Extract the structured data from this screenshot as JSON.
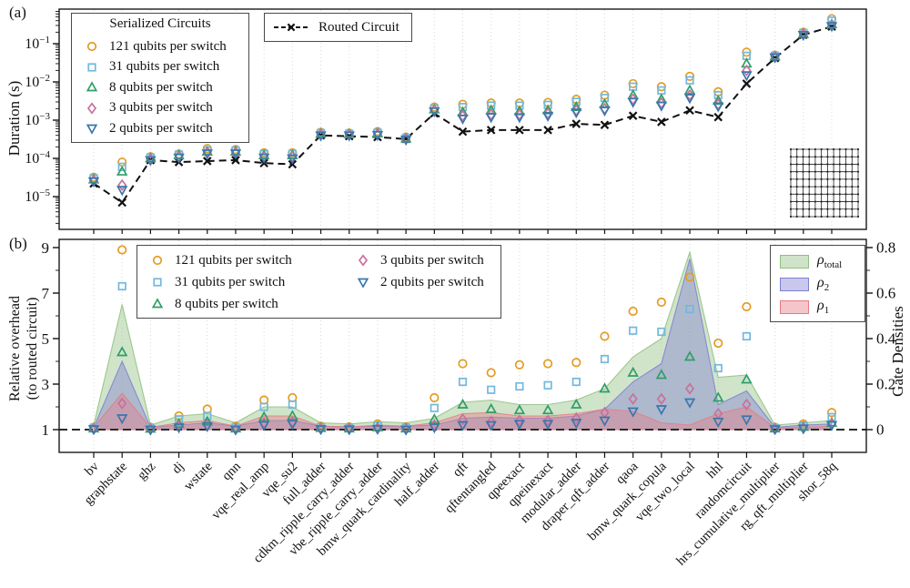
{
  "figure": {
    "panel_a_tag": "(a)",
    "panel_b_tag": "(b)"
  },
  "chart_data": {
    "type": [
      "scatter-log-y",
      "scatter-linear-with-area"
    ],
    "categories": [
      "bv",
      "graphstate",
      "ghz",
      "dj",
      "wstate",
      "qnn",
      "vqe_real_amp",
      "vqe_su2",
      "full_adder",
      "cdkm_ripple_carry_adder",
      "vbe_ripple_carry_adder",
      "bmw_quark_cardinality",
      "half_adder",
      "qft",
      "qftentangled",
      "qpeexact",
      "qpeinexact",
      "modular_adder",
      "draper_qft_adder",
      "qaoa",
      "bmw_quark_copula",
      "vqe_two_local",
      "hhl",
      "randomcircuit",
      "hrs_cumulative_multiplier",
      "rg_qft_multiplier",
      "shor_58q"
    ],
    "panel_a": {
      "ylabel": "Duration (s)",
      "ytick_exponents": [
        -1,
        -2,
        -3,
        -4,
        -5
      ],
      "ylim": [
        1.4e-06,
        0.8
      ],
      "legend_title": "Serialized Circuits",
      "series": [
        {
          "label": "121 qubits per switch",
          "marker": "circle",
          "color": "#E39D25",
          "values": [
            3.2e-05,
            8e-05,
            0.00011,
            0.00013,
            0.00018,
            0.00017,
            0.00014,
            0.00014,
            0.00048,
            0.00046,
            0.0005,
            0.00036,
            0.0022,
            0.0026,
            0.0028,
            0.0028,
            0.0029,
            0.0035,
            0.0045,
            0.009,
            0.0075,
            0.014,
            0.0055,
            0.06,
            0.05,
            0.2,
            0.45
          ]
        },
        {
          "label": "31 qubits per switch",
          "marker": "square",
          "color": "#72B8DE",
          "values": [
            3e-05,
            6e-05,
            0.000105,
            0.000125,
            0.00016,
            0.00016,
            0.00013,
            0.00013,
            0.00046,
            0.00044,
            0.00047,
            0.00034,
            0.002,
            0.0022,
            0.0024,
            0.0024,
            0.0025,
            0.003,
            0.0038,
            0.0075,
            0.006,
            0.011,
            0.0045,
            0.048,
            0.048,
            0.19,
            0.4
          ]
        },
        {
          "label": "8 qubits per switch",
          "marker": "triangle-up",
          "color": "#2F9E68",
          "values": [
            2.8e-05,
            4.5e-05,
            0.0001,
            0.00012,
            0.00015,
            0.00015,
            0.00012,
            0.00012,
            0.00044,
            0.00043,
            0.00045,
            0.00033,
            0.0019,
            0.0016,
            0.0018,
            0.0017,
            0.0018,
            0.0022,
            0.0026,
            0.0045,
            0.0035,
            0.006,
            0.0032,
            0.03,
            0.046,
            0.18,
            0.32
          ]
        },
        {
          "label": "3 qubits per switch",
          "marker": "diamond",
          "color": "#C9709B",
          "values": [
            2.6e-05,
            2e-05,
            9.5e-05,
            0.00011,
            0.00014,
            0.00014,
            0.00011,
            0.00011,
            0.00042,
            0.00041,
            0.00043,
            0.00032,
            0.0018,
            0.0013,
            0.0014,
            0.0014,
            0.0015,
            0.0018,
            0.002,
            0.0035,
            0.0028,
            0.0045,
            0.0026,
            0.02,
            0.045,
            0.175,
            0.3
          ]
        },
        {
          "label": "2 qubits per switch",
          "marker": "triangle-down",
          "color": "#3A76AE",
          "values": [
            2.5e-05,
            1.5e-05,
            9e-05,
            0.000105,
            0.000135,
            0.000135,
            0.000105,
            0.0001,
            0.0004,
            0.0004,
            0.00041,
            0.00031,
            0.0017,
            0.0011,
            0.0012,
            0.0012,
            0.0013,
            0.0016,
            0.0018,
            0.003,
            0.0024,
            0.0038,
            0.0023,
            0.015,
            0.044,
            0.17,
            0.29
          ]
        }
      ],
      "routed": {
        "label": "Routed Circuit",
        "marker": "x",
        "color": "#111111",
        "values": [
          2.2e-05,
          7e-06,
          9e-05,
          8e-05,
          8.5e-05,
          9e-05,
          7.5e-05,
          7e-05,
          0.0004,
          0.00038,
          0.00036,
          0.00032,
          0.0015,
          0.0005,
          0.00055,
          0.00055,
          0.00055,
          0.0008,
          0.00075,
          0.0013,
          0.0009,
          0.0018,
          0.0012,
          0.009,
          0.042,
          0.17,
          0.28
        ]
      },
      "inset": {
        "name": "grid-coupling-map",
        "cols": 12,
        "rows": 10
      }
    },
    "panel_b": {
      "ylabel_line1": "Relative overhead",
      "ylabel_line2": "(to routed circuit)",
      "yticks": [
        9,
        7,
        5,
        3,
        1
      ],
      "baseline": 1,
      "right_label": "Gate Densities",
      "right_yticks": [
        "0.8",
        "0.6",
        "0.4",
        "0.2",
        "0"
      ],
      "right_ylim": [
        0,
        0.8
      ],
      "series": [
        {
          "label": "121 qubits per switch",
          "marker": "circle",
          "color": "#E39D25",
          "values": [
            1.1,
            8.9,
            1.1,
            1.6,
            1.9,
            1.15,
            2.3,
            2.4,
            1.15,
            1.12,
            1.25,
            1.12,
            2.4,
            3.9,
            3.5,
            3.85,
            3.9,
            3.95,
            5.1,
            6.2,
            6.6,
            7.7,
            4.8,
            6.4,
            1.1,
            1.25,
            1.75
          ]
        },
        {
          "label": "31 qubits per switch",
          "marker": "square",
          "color": "#72B8DE",
          "values": [
            1.08,
            7.3,
            1.07,
            1.45,
            1.6,
            1.1,
            2.0,
            2.1,
            1.1,
            1.08,
            1.18,
            1.08,
            1.95,
            3.1,
            2.75,
            2.9,
            2.95,
            3.1,
            4.1,
            5.35,
            5.3,
            6.3,
            3.7,
            5.1,
            1.07,
            1.18,
            1.55
          ]
        },
        {
          "label": "8 qubits per switch",
          "marker": "triangle-up",
          "color": "#2F9E68",
          "values": [
            1.05,
            4.4,
            1.04,
            1.25,
            1.35,
            1.05,
            1.55,
            1.6,
            1.07,
            1.05,
            1.1,
            1.05,
            1.45,
            2.1,
            1.9,
            1.85,
            1.85,
            2.1,
            2.8,
            3.5,
            3.4,
            4.2,
            2.4,
            3.2,
            1.05,
            1.12,
            1.3
          ]
        },
        {
          "label": "3 qubits per switch",
          "marker": "diamond",
          "color": "#C9709B",
          "values": [
            1.03,
            2.15,
            1.02,
            1.15,
            1.2,
            1.02,
            1.3,
            1.35,
            1.04,
            1.03,
            1.05,
            1.02,
            1.2,
            1.45,
            1.35,
            1.4,
            1.4,
            1.5,
            1.75,
            2.35,
            2.35,
            2.8,
            1.7,
            2.1,
            1.03,
            1.08,
            1.25
          ]
        },
        {
          "label": "2 qubits per switch",
          "marker": "triangle-down",
          "color": "#3A76AE",
          "values": [
            1.02,
            1.5,
            1.0,
            1.1,
            1.15,
            1.0,
            1.2,
            1.25,
            1.02,
            1.01,
            1.03,
            1.0,
            1.1,
            1.2,
            1.2,
            1.25,
            1.25,
            1.3,
            1.4,
            1.8,
            1.9,
            2.2,
            1.35,
            1.45,
            1.02,
            1.05,
            1.2
          ]
        }
      ],
      "densities": [
        {
          "symbol": "ρ",
          "sub": "total",
          "color": "#8FBF7F",
          "values": [
            0.02,
            0.55,
            0.02,
            0.06,
            0.07,
            0.03,
            0.1,
            0.1,
            0.03,
            0.025,
            0.035,
            0.03,
            0.05,
            0.12,
            0.13,
            0.11,
            0.11,
            0.13,
            0.18,
            0.32,
            0.4,
            0.78,
            0.23,
            0.24,
            0.02,
            0.03,
            0.04
          ]
        },
        {
          "symbol": "ρ",
          "sub": "2",
          "color": "#7F7FD4",
          "values": [
            0.01,
            0.3,
            0.01,
            0.02,
            0.03,
            0.015,
            0.04,
            0.04,
            0.015,
            0.012,
            0.015,
            0.015,
            0.02,
            0.05,
            0.055,
            0.05,
            0.05,
            0.06,
            0.09,
            0.21,
            0.29,
            0.75,
            0.11,
            0.17,
            0.01,
            0.02,
            0.025
          ]
        },
        {
          "symbol": "ρ",
          "sub": "1",
          "color": "#E57B85",
          "values": [
            0.01,
            0.16,
            0.01,
            0.03,
            0.04,
            0.015,
            0.06,
            0.06,
            0.015,
            0.012,
            0.02,
            0.015,
            0.03,
            0.07,
            0.075,
            0.06,
            0.06,
            0.07,
            0.09,
            0.08,
            0.03,
            0.02,
            0.07,
            0.1,
            0.008,
            0.01,
            0.015
          ]
        }
      ]
    }
  }
}
